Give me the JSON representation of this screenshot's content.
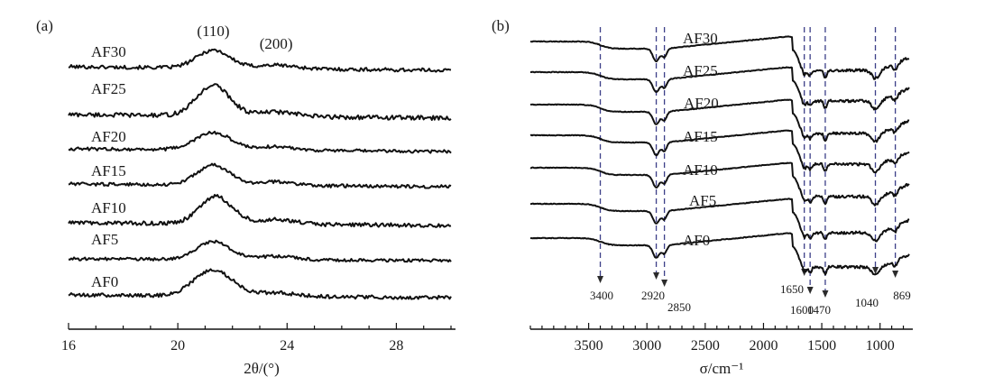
{
  "panel_a_label": "(a)",
  "panel_b_label": "(b)",
  "chart_data": [
    {
      "type": "line",
      "panel": "(a)",
      "xlabel": "2θ/(°)",
      "xlim": [
        16,
        30
      ],
      "xticks": [
        16,
        20,
        24,
        28
      ],
      "y_axis_visible": false,
      "peak_labels": [
        {
          "text": "(110)",
          "x": 21.3
        },
        {
          "text": "(200)",
          "x": 23.6
        }
      ],
      "series": [
        {
          "name": "AF30",
          "peaks": [
            {
              "x": 21.3,
              "height": 20,
              "width": 0.6
            },
            {
              "x": 23.6,
              "height": 4,
              "width": 0.7
            }
          ],
          "slope": 4,
          "noise": 2.0
        },
        {
          "name": "AF25",
          "peaks": [
            {
              "x": 21.3,
              "height": 34,
              "width": 0.6
            },
            {
              "x": 23.6,
              "height": 5,
              "width": 0.7
            }
          ],
          "slope": 4,
          "noise": 2.4
        },
        {
          "name": "AF20",
          "peaks": [
            {
              "x": 21.3,
              "height": 19,
              "width": 0.65
            },
            {
              "x": 23.6,
              "height": 4,
              "width": 0.7
            }
          ],
          "slope": 3,
          "noise": 1.8
        },
        {
          "name": "AF15",
          "peaks": [
            {
              "x": 21.3,
              "height": 22,
              "width": 0.6
            },
            {
              "x": 23.6,
              "height": 4,
              "width": 0.7
            }
          ],
          "slope": 3,
          "noise": 1.8
        },
        {
          "name": "AF10",
          "peaks": [
            {
              "x": 21.4,
              "height": 30,
              "width": 0.6
            },
            {
              "x": 23.6,
              "height": 5,
              "width": 0.7
            }
          ],
          "slope": 3,
          "noise": 2.2
        },
        {
          "name": "AF5",
          "peaks": [
            {
              "x": 21.3,
              "height": 20,
              "width": 0.6
            },
            {
              "x": 23.6,
              "height": 4,
              "width": 0.7
            }
          ],
          "slope": 2,
          "noise": 1.6
        },
        {
          "name": "AF0",
          "peaks": [
            {
              "x": 21.3,
              "height": 29,
              "width": 0.7
            },
            {
              "x": 23.6,
              "height": 4,
              "width": 0.7
            }
          ],
          "slope": 3,
          "noise": 2.0
        }
      ]
    },
    {
      "type": "line",
      "panel": "(b)",
      "xlabel": "σ/cm⁻¹",
      "xlim": [
        4000,
        750
      ],
      "xticks": [
        3500,
        3000,
        2500,
        2000,
        1500,
        1000
      ],
      "y_axis_visible": false,
      "band_annotations": [
        {
          "text": "3400",
          "x": 3400
        },
        {
          "text": "2920",
          "x": 2920
        },
        {
          "text": "2850",
          "x": 2850
        },
        {
          "text": "1650",
          "x": 1650
        },
        {
          "text": "1600",
          "x": 1600
        },
        {
          "text": "1470",
          "x": 1470
        },
        {
          "text": "1040",
          "x": 1040
        },
        {
          "text": "869",
          "x": 869
        }
      ],
      "series": [
        {
          "name": "AF30"
        },
        {
          "name": "AF25"
        },
        {
          "name": "AF20"
        },
        {
          "name": "AF15"
        },
        {
          "name": "AF10"
        },
        {
          "name": "AF5"
        },
        {
          "name": "AF0"
        }
      ]
    }
  ]
}
